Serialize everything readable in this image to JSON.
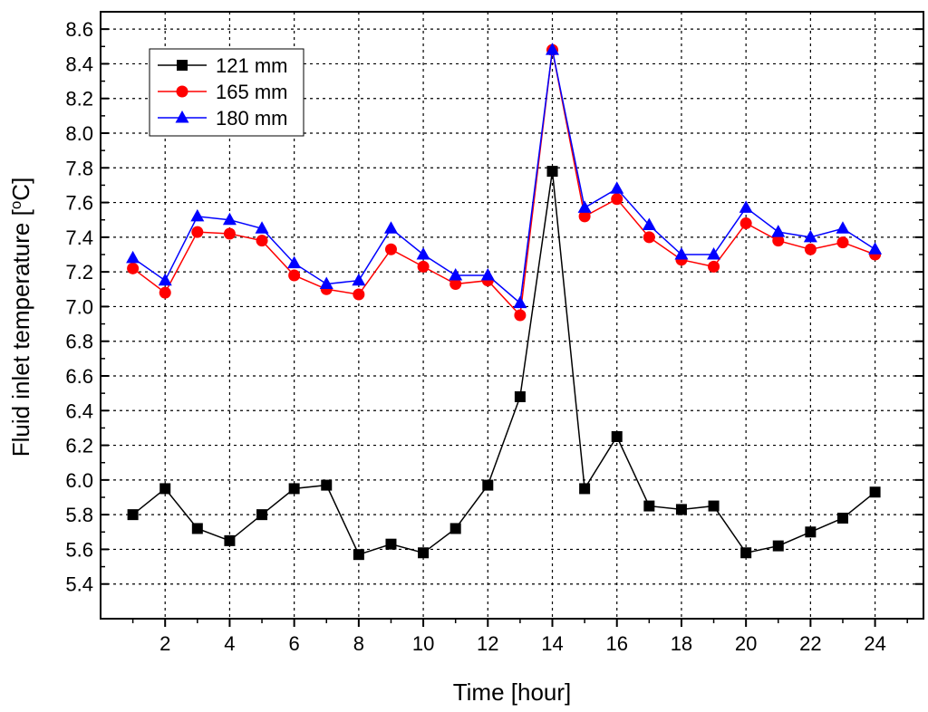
{
  "chart_data": {
    "type": "line",
    "xlabel": "Time [hour]",
    "ylabel": {
      "prefix": "Fluid inlet temperature [",
      "sup": "o",
      "suffix": "C]"
    },
    "xlim": [
      0,
      25.5
    ],
    "ylim": [
      5.2,
      8.7
    ],
    "x_ticks": [
      2,
      4,
      6,
      8,
      10,
      12,
      14,
      16,
      18,
      20,
      22,
      24
    ],
    "x_tick_labels": [
      "2",
      "4",
      "6",
      "8",
      "10",
      "12",
      "14",
      "16",
      "18",
      "20",
      "22",
      "24"
    ],
    "y_ticks": [
      5.4,
      5.6,
      5.8,
      6.0,
      6.2,
      6.4,
      6.6,
      6.8,
      7.0,
      7.2,
      7.4,
      7.6,
      7.8,
      8.0,
      8.2,
      8.4,
      8.6
    ],
    "y_tick_labels": [
      "5.4",
      "5.6",
      "5.8",
      "6.0",
      "6.2",
      "6.4",
      "6.6",
      "6.8",
      "7.0",
      "7.2",
      "7.4",
      "7.6",
      "7.8",
      "8.0",
      "8.2",
      "8.4",
      "8.6"
    ],
    "grid": true,
    "legend_position": "top-left",
    "x": [
      1,
      2,
      3,
      4,
      5,
      6,
      7,
      8,
      9,
      10,
      11,
      12,
      13,
      14,
      15,
      16,
      17,
      18,
      19,
      20,
      21,
      22,
      23,
      24
    ],
    "series": [
      {
        "name": "121 mm",
        "color": "#000000",
        "marker": "square",
        "values": [
          5.8,
          5.95,
          5.72,
          5.65,
          5.8,
          5.95,
          5.97,
          5.57,
          5.63,
          5.58,
          5.72,
          5.97,
          6.48,
          7.78,
          5.95,
          6.25,
          5.85,
          5.83,
          5.85,
          5.58,
          5.62,
          5.7,
          5.78,
          5.93
        ]
      },
      {
        "name": "165 mm",
        "color": "#ff0000",
        "marker": "circle",
        "values": [
          7.22,
          7.08,
          7.43,
          7.42,
          7.38,
          7.18,
          7.1,
          7.07,
          7.33,
          7.23,
          7.13,
          7.15,
          6.95,
          8.48,
          7.52,
          7.62,
          7.4,
          7.27,
          7.23,
          7.48,
          7.38,
          7.33,
          7.37,
          7.3
        ]
      },
      {
        "name": "180 mm",
        "color": "#0000ff",
        "marker": "triangle",
        "values": [
          7.28,
          7.15,
          7.52,
          7.5,
          7.45,
          7.25,
          7.13,
          7.15,
          7.45,
          7.3,
          7.18,
          7.18,
          7.02,
          8.48,
          7.57,
          7.68,
          7.47,
          7.3,
          7.3,
          7.57,
          7.43,
          7.4,
          7.45,
          7.33
        ]
      }
    ]
  }
}
